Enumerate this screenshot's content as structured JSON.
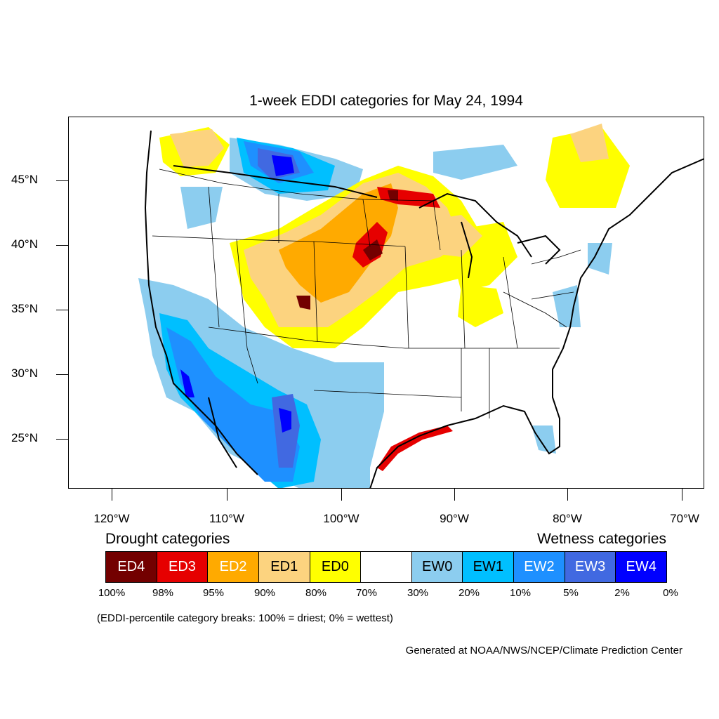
{
  "title": "1-week EDDI categories for May 24, 1994",
  "lat_labels": [
    "45°N",
    "40°N",
    "35°N",
    "30°N",
    "25°N"
  ],
  "lon_labels": [
    "120°W",
    "110°W",
    "100°W",
    "90°W",
    "80°W",
    "70°W"
  ],
  "legend": {
    "drought_heading": "Drought categories",
    "wetness_heading": "Wetness categories",
    "categories": [
      {
        "label": "ED4",
        "color": "#730000",
        "text_color": "#ffffff"
      },
      {
        "label": "ED3",
        "color": "#e60000",
        "text_color": "#ffffff"
      },
      {
        "label": "ED2",
        "color": "#ffaa00",
        "text_color": "#ffffff"
      },
      {
        "label": "ED1",
        "color": "#fcd37f",
        "text_color": "#000000"
      },
      {
        "label": "ED0",
        "color": "#ffff00",
        "text_color": "#000000"
      },
      {
        "label": "",
        "color": "#ffffff",
        "text_color": "#000000"
      },
      {
        "label": "EW0",
        "color": "#8ccdef",
        "text_color": "#000000"
      },
      {
        "label": "EW1",
        "color": "#00bfff",
        "text_color": "#000000"
      },
      {
        "label": "EW2",
        "color": "#1e90ff",
        "text_color": "#ffffff"
      },
      {
        "label": "EW3",
        "color": "#4169e1",
        "text_color": "#ffffff"
      },
      {
        "label": "EW4",
        "color": "#0000ff",
        "text_color": "#ffffff"
      }
    ],
    "percentiles": [
      "100%",
      "98%",
      "95%",
      "90%",
      "80%",
      "70%",
      "30%",
      "20%",
      "10%",
      "5%",
      "2%",
      "0%"
    ]
  },
  "note": "(EDDI-percentile category breaks: 100% = driest; 0% = wettest)",
  "credit": "Generated at NOAA/NWS/NCEP/Climate Prediction Center"
}
